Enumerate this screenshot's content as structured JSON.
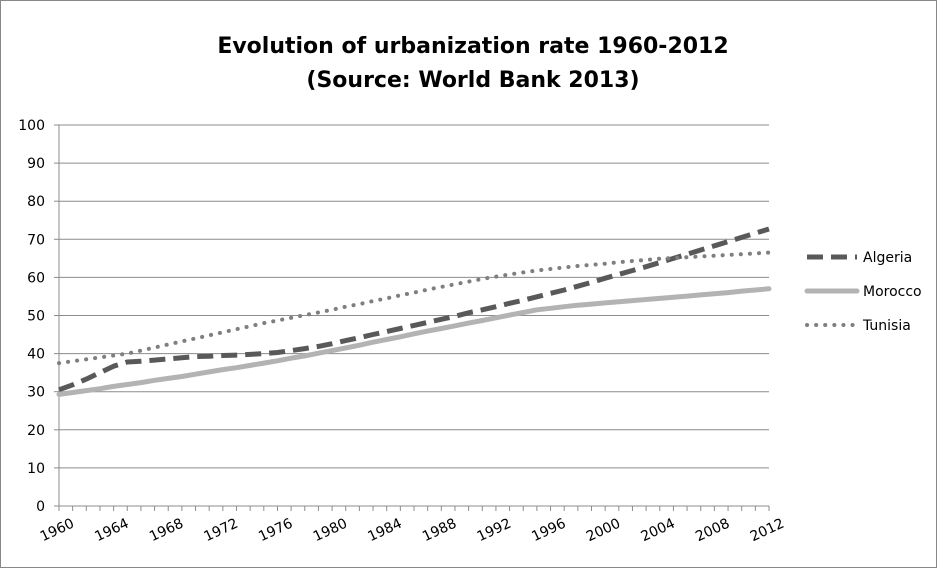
{
  "chart_data": {
    "type": "line",
    "title": "Evolution of urbanization rate 1960-2012",
    "subtitle": "(Source: World Bank 2013)",
    "xlabel": "",
    "ylabel": "",
    "ylim": [
      0,
      100
    ],
    "yticks": [
      "0",
      "10",
      "20",
      "30",
      "40",
      "50",
      "60",
      "70",
      "80",
      "90",
      "100"
    ],
    "x": [
      1960,
      1961,
      1962,
      1963,
      1964,
      1965,
      1966,
      1967,
      1968,
      1969,
      1970,
      1971,
      1972,
      1973,
      1974,
      1975,
      1976,
      1977,
      1978,
      1979,
      1980,
      1981,
      1982,
      1983,
      1984,
      1985,
      1986,
      1987,
      1988,
      1989,
      1990,
      1991,
      1992,
      1993,
      1994,
      1995,
      1996,
      1997,
      1998,
      1999,
      2000,
      2001,
      2002,
      2003,
      2004,
      2005,
      2006,
      2007,
      2008,
      2009,
      2010,
      2011,
      2012
    ],
    "xtick_labels": [
      "1960",
      "1964",
      "1968",
      "1972",
      "1976",
      "1980",
      "1984",
      "1988",
      "1992",
      "1996",
      "2000",
      "2004",
      "2008",
      "2012"
    ],
    "grid": true,
    "legend_position": "right",
    "series": [
      {
        "name": "Algeria",
        "color": "#595959",
        "style": "dashed",
        "values": [
          30.5,
          31.8,
          33.3,
          35.0,
          36.7,
          37.8,
          38.0,
          38.3,
          38.6,
          38.9,
          39.2,
          39.3,
          39.5,
          39.6,
          39.8,
          40.0,
          40.3,
          40.8,
          41.3,
          41.9,
          42.6,
          43.4,
          44.2,
          45.0,
          45.8,
          46.6,
          47.4,
          48.2,
          49.0,
          49.8,
          50.7,
          51.5,
          52.3,
          53.2,
          54.0,
          54.9,
          55.8,
          56.7,
          57.7,
          58.7,
          59.8,
          60.8,
          61.8,
          62.8,
          63.9,
          65.0,
          66.1,
          67.2,
          68.3,
          69.4,
          70.5,
          71.6,
          72.7
        ]
      },
      {
        "name": "Morocco",
        "color": "#b3b3b3",
        "style": "solid",
        "values": [
          29.3,
          29.8,
          30.3,
          30.8,
          31.4,
          31.9,
          32.4,
          33.0,
          33.5,
          34.0,
          34.6,
          35.2,
          35.8,
          36.3,
          36.9,
          37.5,
          38.1,
          38.8,
          39.4,
          40.1,
          40.8,
          41.5,
          42.2,
          43.0,
          43.7,
          44.4,
          45.2,
          45.9,
          46.6,
          47.3,
          48.0,
          48.7,
          49.4,
          50.1,
          50.8,
          51.5,
          51.9,
          52.3,
          52.7,
          53.0,
          53.3,
          53.6,
          53.9,
          54.2,
          54.5,
          54.8,
          55.1,
          55.4,
          55.7,
          56.0,
          56.4,
          56.7,
          57.0
        ]
      },
      {
        "name": "Tunisia",
        "color": "#7f7f7f",
        "style": "dotted",
        "values": [
          37.5,
          38.0,
          38.5,
          39.0,
          39.5,
          40.0,
          40.8,
          41.6,
          42.4,
          43.2,
          44.0,
          44.8,
          45.6,
          46.4,
          47.2,
          48.0,
          48.7,
          49.4,
          50.1,
          50.8,
          51.5,
          52.3,
          53.0,
          53.8,
          54.5,
          55.3,
          56.0,
          56.8,
          57.5,
          58.2,
          58.9,
          59.6,
          60.2,
          60.8,
          61.3,
          61.8,
          62.2,
          62.6,
          63.0,
          63.3,
          63.6,
          64.0,
          64.3,
          64.6,
          64.9,
          65.1,
          65.3,
          65.5,
          65.7,
          65.9,
          66.1,
          66.3,
          66.5
        ]
      }
    ]
  }
}
